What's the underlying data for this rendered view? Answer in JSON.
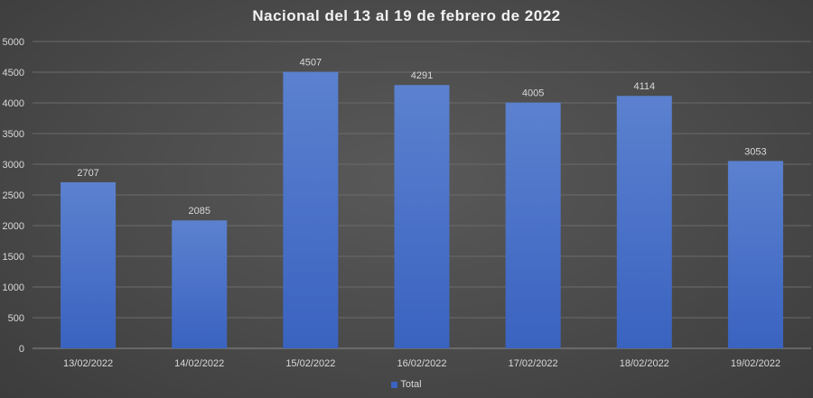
{
  "chart_data": {
    "type": "bar",
    "title": "Nacional del 13 al 19 de febrero de 2022",
    "categories": [
      "13/02/2022",
      "14/02/2022",
      "15/02/2022",
      "16/02/2022",
      "17/02/2022",
      "18/02/2022",
      "19/02/2022"
    ],
    "series": [
      {
        "name": "Total",
        "values": [
          2707,
          2085,
          4507,
          4291,
          4005,
          4114,
          3053
        ]
      }
    ],
    "ylim": [
      0,
      5000
    ],
    "yticks": [
      0,
      500,
      1000,
      1500,
      2000,
      2500,
      3000,
      3500,
      4000,
      4500,
      5000
    ],
    "xlabel": "",
    "ylabel": "",
    "grid": true,
    "legend_position": "bottom",
    "colors": {
      "bar_top": "#5b81cf",
      "bar_bottom": "#3a63c0",
      "grid": "#6b6b6b",
      "text": "#d9d9d9"
    }
  }
}
